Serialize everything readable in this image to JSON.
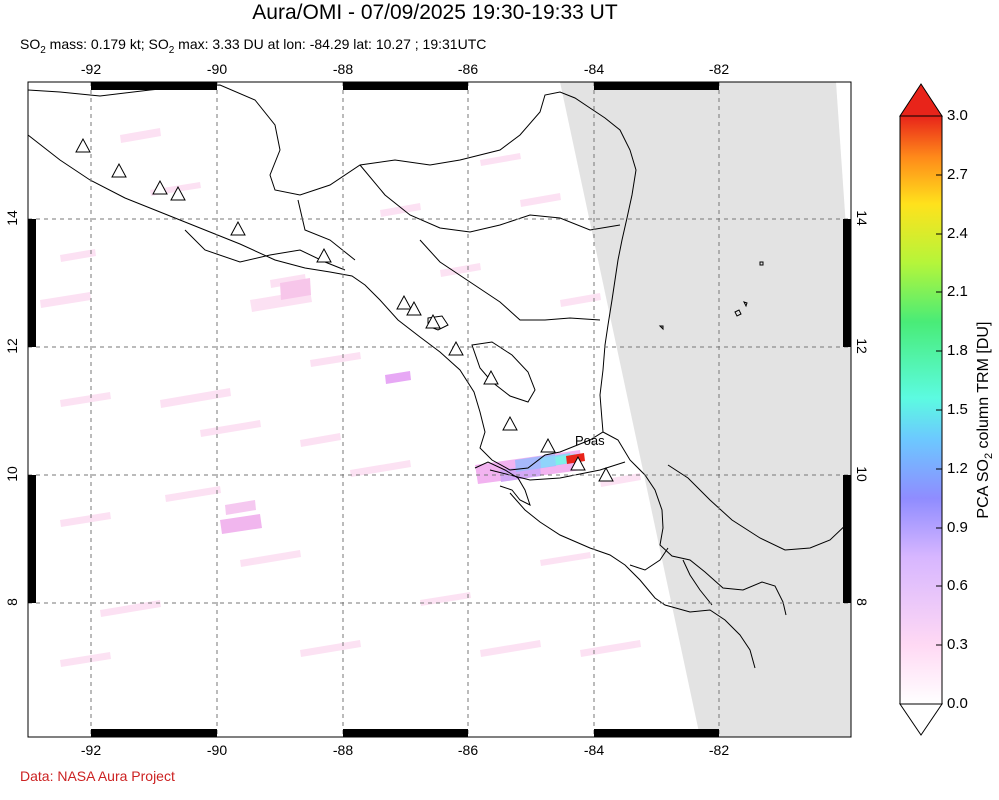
{
  "title": "Aura/OMI - 07/09/2025 19:30-19:33 UT",
  "subtitle": {
    "p1": "SO",
    "sub1": "2",
    "p2": " mass: 0.179 kt; SO",
    "sub2": "2",
    "p3": " max: 3.33 DU at lon: -84.29 lat: 10.27 ; 19:31UTC"
  },
  "credit": "Data: NASA Aura Project",
  "map": {
    "lon_ticks": [
      "-92",
      "-90",
      "-88",
      "-86",
      "-84",
      "-82"
    ],
    "lat_ticks": [
      "14",
      "12",
      "10",
      "8"
    ],
    "volcano_label": "Poas"
  },
  "colorbar": {
    "labels": [
      "3.0",
      "2.7",
      "2.4",
      "2.1",
      "1.8",
      "1.5",
      "1.2",
      "0.9",
      "0.6",
      "0.3",
      "0.0"
    ],
    "title_pre": "PCA SO",
    "title_sub": "2",
    "title_post": " column TRM [DU]",
    "stops": [
      "#ffffff",
      "#ffd9f4",
      "#d7b6ff",
      "#8f8cff",
      "#6cc8ff",
      "#5cfbe1",
      "#49ec77",
      "#b5f53a",
      "#ffe21c",
      "#ff8a1a",
      "#e8241a"
    ]
  }
}
